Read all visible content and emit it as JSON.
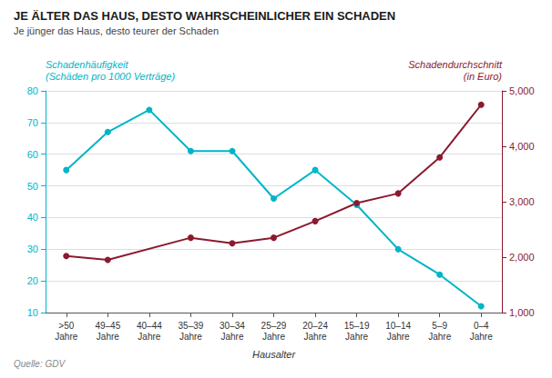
{
  "chart_data": {
    "type": "line",
    "title": "JE ÄLTER DAS HAUS, DESTO WAHRSCHEINLICHER EIN SCHADEN",
    "subtitle": "Je jünger das Haus, desto teurer der Schaden",
    "source": "Quelle: GDV",
    "xlabel": "Hausalter",
    "ylabel": "Schadenhäufigkeit\n(Schäden pro 1000 Verträge)",
    "y2label": "Schadendurchschnitt\n(in Euro)",
    "categories": [
      ">50\nJahre",
      "49–45\nJahre",
      "40–44\nJahre",
      "35–39\nJahre",
      "30–34\nJahre",
      "25–29\nJahre",
      "20–24\nJahre",
      "15–19\nJahre",
      "10–14\nJahre",
      "5–9\nJahre",
      "0–4\nJahre"
    ],
    "series": [
      {
        "values": [
          55,
          67,
          74,
          61,
          61,
          46,
          55,
          44,
          30,
          22,
          12
        ],
        "color": "#00B5C8",
        "marker": "circle"
      },
      {
        "values": [
          2020,
          1950,
          null,
          2350,
          2250,
          2350,
          2650,
          2975,
          3150,
          3800,
          4750
        ],
        "color": "#8B1A2E",
        "marker": "circle",
        "axis": "y2"
      }
    ],
    "ylim": [
      10,
      80
    ],
    "yticks": [
      10,
      20,
      30,
      40,
      50,
      60,
      70,
      80
    ],
    "y2lim": [
      1000,
      5000
    ],
    "y2ticks": [
      1000,
      2000,
      3000,
      4000,
      5000
    ],
    "grid": true
  }
}
